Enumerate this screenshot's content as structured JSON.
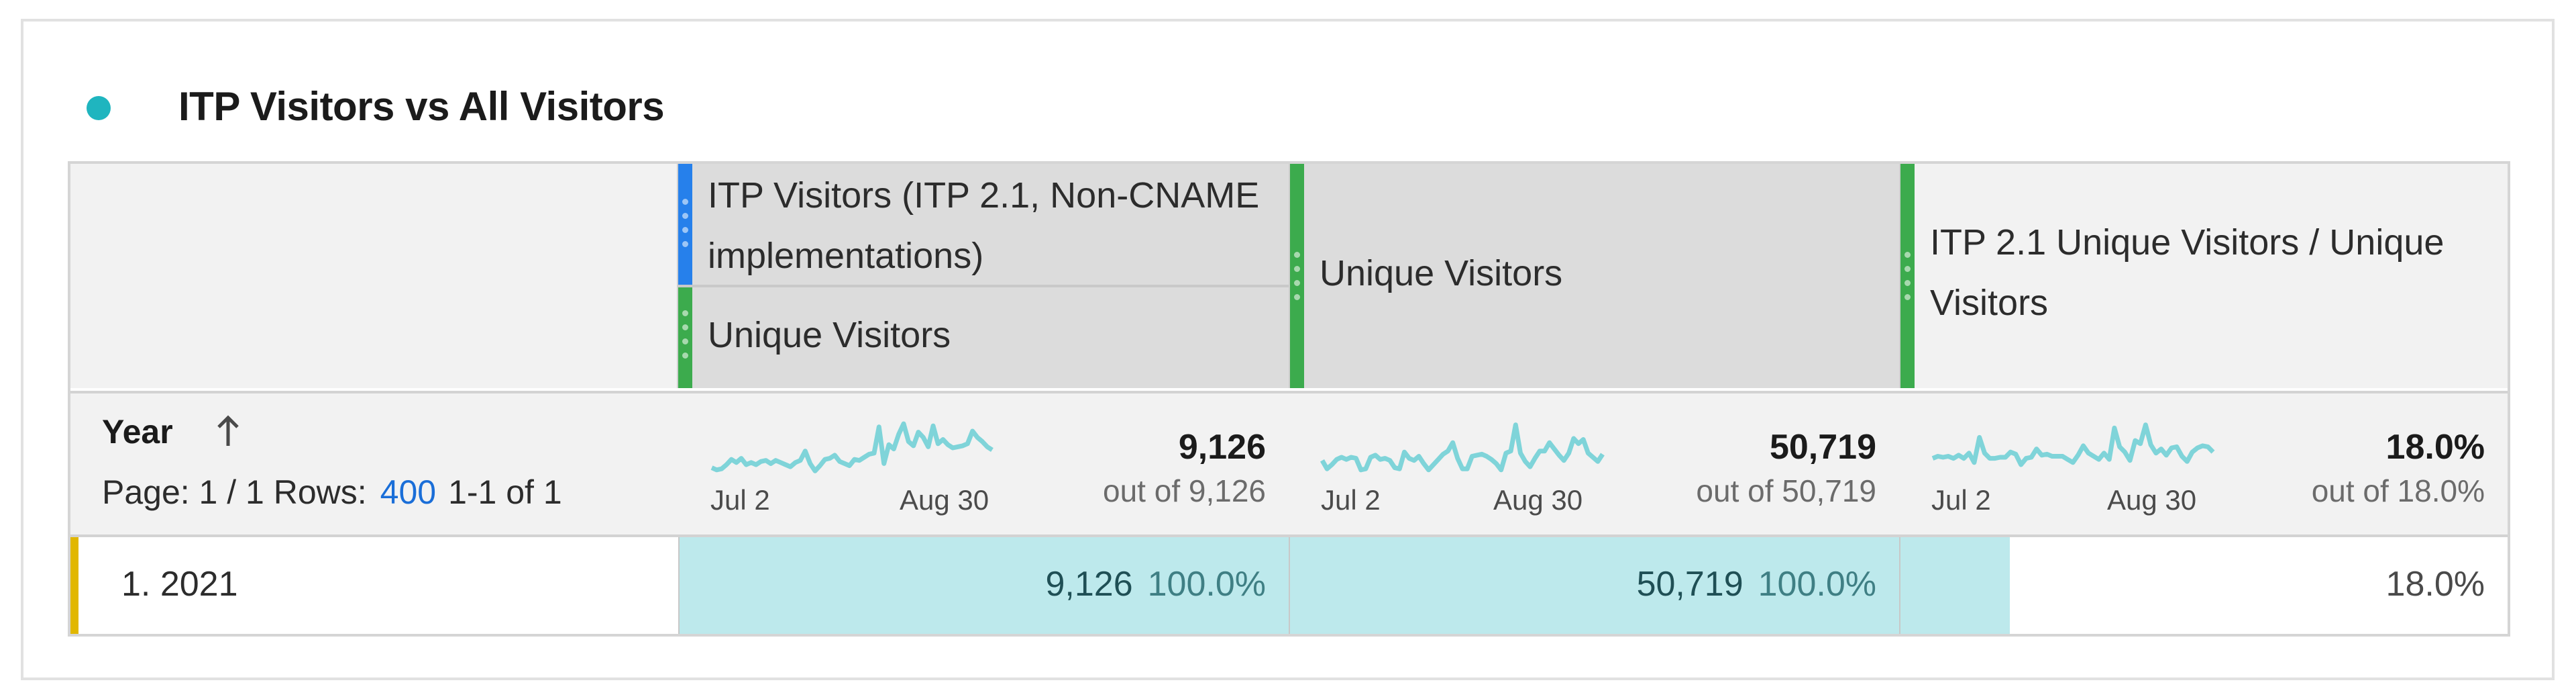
{
  "panel": {
    "title": "ITP Visitors vs All Visitors",
    "status_dot_color": "#1fb5bf"
  },
  "table": {
    "dimension": {
      "label": "Year",
      "sort_icon": "arrow-up-icon",
      "pager_page_label": "Page: 1 / 1 Rows:",
      "pager_rows_value": "400",
      "pager_range": "1-1 of 1"
    },
    "columns": [
      {
        "segment_label": "ITP Visitors (ITP 2.1, Non-CNAME implementations)",
        "segment_color": "#2680eb",
        "metric_label": "Unique Visitors",
        "metric_color": "#3cab4d",
        "spark_start": "Jul 2",
        "spark_end": "Aug 30",
        "total": "9,126",
        "out_of": "out of 9,126"
      },
      {
        "metric_label": "Unique Visitors",
        "metric_color": "#3cab4d",
        "spark_start": "Jul 2",
        "spark_end": "Aug 30",
        "total": "50,719",
        "out_of": "out of 50,719"
      },
      {
        "metric_label": "ITP 2.1 Unique Visitors / Unique Visitors",
        "metric_color": "#3cab4d",
        "spark_start": "Jul 2",
        "spark_end": "Aug 30",
        "total": "18.0%",
        "out_of": "out of 18.0%"
      }
    ],
    "rows": [
      {
        "label": "1. 2021",
        "marker_color": "#e1b700",
        "cells": [
          {
            "value": "9,126",
            "percent": "100.0%",
            "fill_pct": 100
          },
          {
            "value": "50,719",
            "percent": "100.0%",
            "fill_pct": 100
          },
          {
            "value": "18.0%",
            "percent": "",
            "fill_pct": 18
          }
        ]
      }
    ]
  },
  "chart_data": [
    {
      "type": "line",
      "title": "ITP Visitors (ITP 2.1, Non-CNAME implementations) - Unique Visitors (daily trend)",
      "x_start": "Jul 2",
      "x_end": "Aug 30",
      "values": [
        12,
        8,
        10,
        18,
        28,
        22,
        30,
        18,
        22,
        18,
        24,
        26,
        20,
        26,
        22,
        18,
        14,
        22,
        26,
        44,
        20,
        6,
        16,
        28,
        30,
        36,
        24,
        20,
        16,
        28,
        26,
        32,
        38,
        40,
        90,
        20,
        56,
        48,
        76,
        96,
        62,
        54,
        80,
        70,
        52,
        92,
        58,
        66,
        56,
        50,
        52,
        54,
        58,
        82,
        70,
        62,
        52,
        46
      ]
    },
    {
      "type": "line",
      "title": "Unique Visitors (daily trend)",
      "x_start": "Jul 2",
      "x_end": "Aug 30",
      "values": [
        26,
        10,
        18,
        28,
        32,
        28,
        32,
        30,
        8,
        10,
        32,
        36,
        28,
        30,
        26,
        12,
        10,
        42,
        30,
        26,
        34,
        20,
        8,
        18,
        28,
        38,
        44,
        60,
        30,
        10,
        10,
        34,
        36,
        38,
        34,
        28,
        20,
        8,
        40,
        44,
        94,
        40,
        24,
        14,
        30,
        44,
        44,
        60,
        48,
        36,
        26,
        40,
        68,
        58,
        66,
        40,
        32,
        24,
        38
      ]
    },
    {
      "type": "line",
      "title": "ITP 2.1 Unique Visitors / Unique Visitors (daily trend)",
      "x_start": "Jul 2",
      "x_end": "Aug 30",
      "values": [
        30,
        34,
        32,
        34,
        30,
        36,
        30,
        40,
        22,
        70,
        40,
        30,
        30,
        32,
        32,
        42,
        38,
        18,
        30,
        32,
        48,
        36,
        38,
        34,
        34,
        34,
        28,
        22,
        36,
        54,
        40,
        34,
        28,
        40,
        28,
        88,
        52,
        42,
        26,
        64,
        58,
        94,
        56,
        40,
        48,
        36,
        50,
        52,
        34,
        24,
        42,
        50,
        54,
        52,
        42
      ]
    }
  ]
}
